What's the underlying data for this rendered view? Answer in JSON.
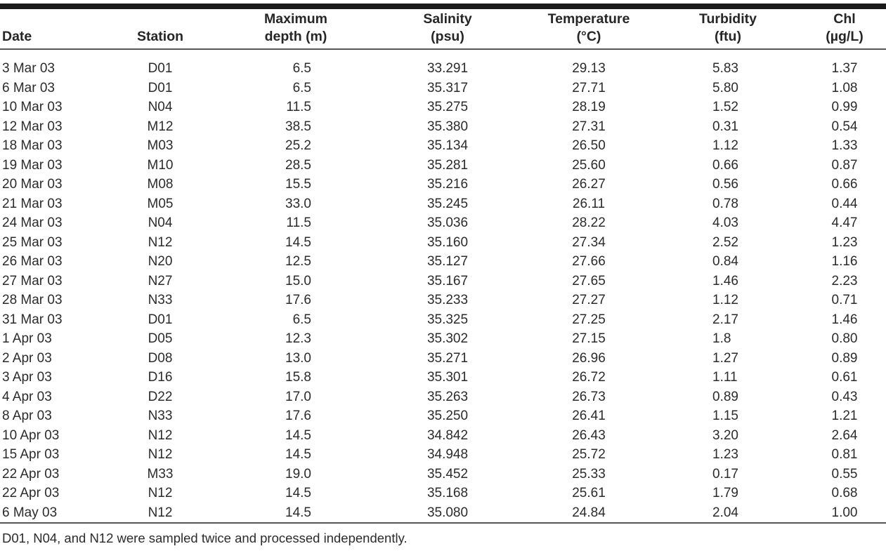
{
  "page": {
    "background": "#ffffff",
    "text_color": "#2b2b2b",
    "top_bar_color": "#1b1b1b",
    "rule_color": "#565656"
  },
  "table": {
    "columns": [
      {
        "line1": "",
        "line2": "Date"
      },
      {
        "line1": "",
        "line2": "Station"
      },
      {
        "line1": "Maximum",
        "line2": "depth (m)"
      },
      {
        "line1": "Salinity",
        "line2": "(psu)"
      },
      {
        "line1": "Temperature",
        "line2": "(°C)"
      },
      {
        "line1": "Turbidity",
        "line2": "(ftu)"
      },
      {
        "line1": "Chl",
        "line2": "(µg/L)"
      }
    ],
    "rows": [
      [
        "3 Mar 03",
        "D01",
        "6.5",
        "33.291",
        "29.13",
        "5.83",
        "1.37"
      ],
      [
        "6 Mar 03",
        "D01",
        "6.5",
        "35.317",
        "27.71",
        "5.80",
        "1.08"
      ],
      [
        "10 Mar 03",
        "N04",
        "11.5",
        "35.275",
        "28.19",
        "1.52",
        "0.99"
      ],
      [
        "12 Mar 03",
        "M12",
        "38.5",
        "35.380",
        "27.31",
        "0.31",
        "0.54"
      ],
      [
        "18 Mar 03",
        "M03",
        "25.2",
        "35.134",
        "26.50",
        "1.12",
        "1.33"
      ],
      [
        "19 Mar 03",
        "M10",
        "28.5",
        "35.281",
        "25.60",
        "0.66",
        "0.87"
      ],
      [
        "20 Mar 03",
        "M08",
        "15.5",
        "35.216",
        "26.27",
        "0.56",
        "0.66"
      ],
      [
        "21 Mar 03",
        "M05",
        "33.0",
        "35.245",
        "26.11",
        "0.78",
        "0.44"
      ],
      [
        "24 Mar 03",
        "N04",
        "11.5",
        "35.036",
        "28.22",
        "4.03",
        "4.47"
      ],
      [
        "25 Mar 03",
        "N12",
        "14.5",
        "35.160",
        "27.34",
        "2.52",
        "1.23"
      ],
      [
        "26 Mar 03",
        "N20",
        "12.5",
        "35.127",
        "27.66",
        "0.84",
        "1.16"
      ],
      [
        "27 Mar 03",
        "N27",
        "15.0",
        "35.167",
        "27.65",
        "1.46",
        "2.23"
      ],
      [
        "28 Mar 03",
        "N33",
        "17.6",
        "35.233",
        "27.27",
        "1.12",
        "0.71"
      ],
      [
        "31 Mar 03",
        "D01",
        "6.5",
        "35.325",
        "27.25",
        "2.17",
        "1.46"
      ],
      [
        "1 Apr 03",
        "D05",
        "12.3",
        "35.302",
        "27.15",
        "1.8",
        "0.80"
      ],
      [
        "2 Apr 03",
        "D08",
        "13.0",
        "35.271",
        "26.96",
        "1.27",
        "0.89"
      ],
      [
        "3 Apr 03",
        "D16",
        "15.8",
        "35.301",
        "26.72",
        "1.11",
        "0.61"
      ],
      [
        "4 Apr 03",
        "D22",
        "17.0",
        "35.263",
        "26.73",
        "0.89",
        "0.43"
      ],
      [
        "8 Apr 03",
        "N33",
        "17.6",
        "35.250",
        "26.41",
        "1.15",
        "1.21"
      ],
      [
        "10 Apr 03",
        "N12",
        "14.5",
        "34.842",
        "26.43",
        "3.20",
        "2.64"
      ],
      [
        "15 Apr 03",
        "N12",
        "14.5",
        "34.948",
        "25.72",
        "1.23",
        "0.81"
      ],
      [
        "22 Apr 03",
        "M33",
        "19.0",
        "35.452",
        "25.33",
        "0.17",
        "0.55"
      ],
      [
        "22 Apr 03",
        "N12",
        "14.5",
        "35.168",
        "25.61",
        "1.79",
        "0.68"
      ],
      [
        "6 May 03",
        "N12",
        "14.5",
        "35.080",
        "24.84",
        "2.04",
        "1.00"
      ]
    ]
  },
  "footnote": "D01, N04, and N12 were sampled twice and processed independently."
}
